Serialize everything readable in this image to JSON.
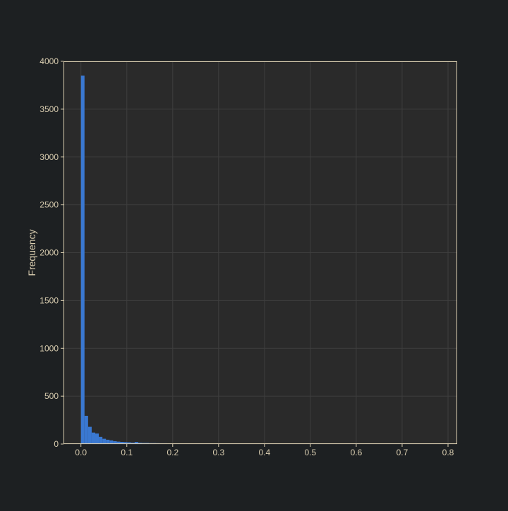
{
  "chart_data": {
    "type": "bar",
    "title": "",
    "xlabel": "",
    "ylabel": "Frequency",
    "xlim": [
      -0.038,
      0.82
    ],
    "ylim": [
      0,
      4000
    ],
    "grid": true,
    "legend": "none",
    "x_ticks": [
      "0.0",
      "0.1",
      "0.2",
      "0.3",
      "0.4",
      "0.5",
      "0.6",
      "0.7",
      "0.8"
    ],
    "y_ticks": [
      "0",
      "500",
      "1000",
      "1500",
      "2000",
      "2500",
      "3000",
      "3500",
      "4000"
    ],
    "bin_width": 0.0078,
    "bin_edges_start": 0,
    "values": [
      3850,
      295,
      180,
      120,
      110,
      75,
      55,
      45,
      38,
      30,
      25,
      22,
      20,
      18,
      15,
      22,
      14,
      12,
      12,
      10,
      10,
      9,
      8,
      8,
      7,
      7,
      6,
      6,
      5,
      5,
      5,
      5,
      6,
      5,
      4,
      4,
      3,
      3,
      2,
      2,
      2,
      2,
      2,
      5,
      2,
      2,
      2,
      2,
      1,
      1,
      1,
      1,
      1,
      1,
      1,
      1,
      1,
      1,
      1,
      1,
      1,
      1,
      1,
      1,
      1,
      1,
      1,
      1,
      1,
      1,
      1,
      1,
      1,
      1,
      1,
      1,
      1,
      1,
      1,
      1,
      1,
      1,
      1,
      1,
      1,
      1,
      1,
      1,
      1,
      1,
      1,
      1,
      1,
      1,
      1,
      1,
      1,
      1,
      1,
      1
    ],
    "colors": {
      "bar": "#3a78d1",
      "plot_bg": "#2a2a2a",
      "frame": "#d9cdb0",
      "grid": "#3e3e3e",
      "text": "#d9cdb0"
    }
  }
}
